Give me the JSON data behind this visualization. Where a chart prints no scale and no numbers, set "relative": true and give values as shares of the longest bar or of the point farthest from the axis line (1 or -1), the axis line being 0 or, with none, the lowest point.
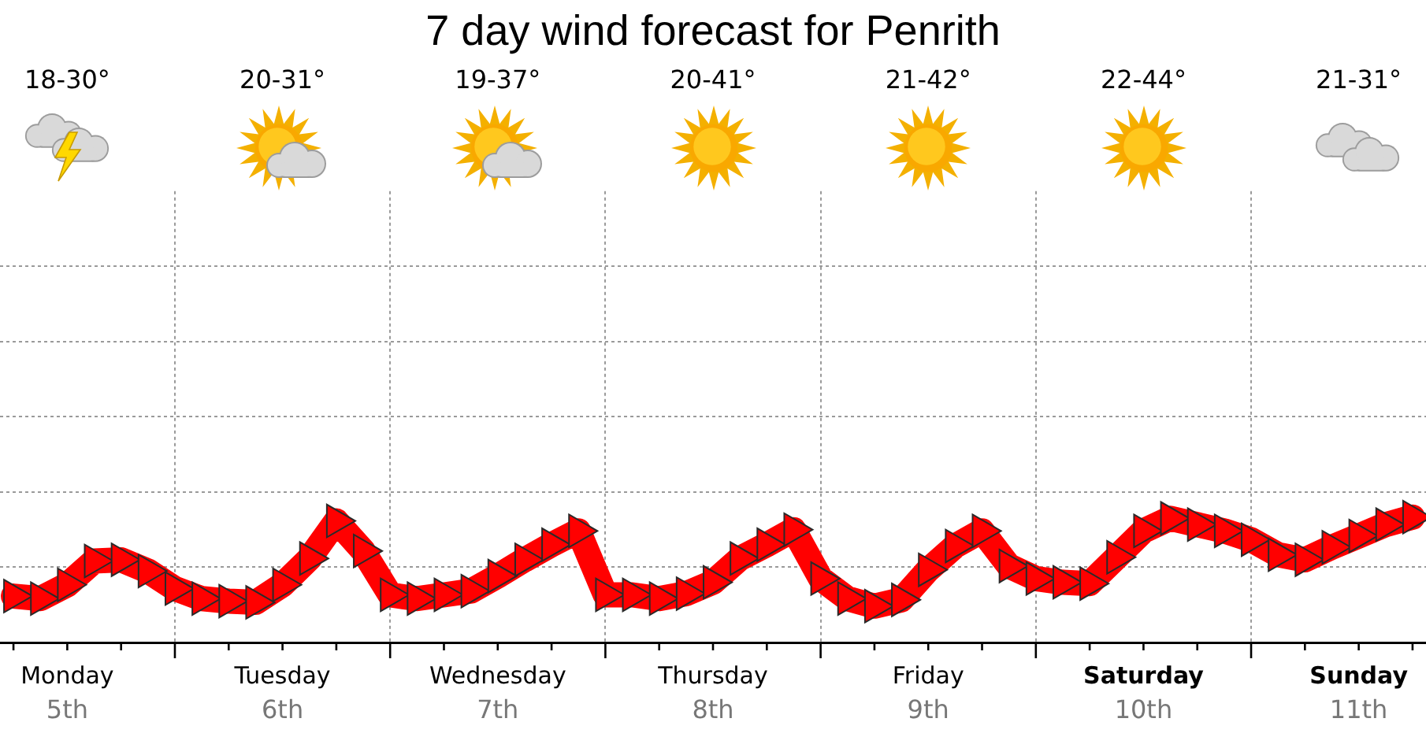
{
  "chart_data": {
    "type": "line",
    "title": "7 day wind forecast for Penrith",
    "categories": [
      null,
      null,
      "Monday\n5th",
      null,
      null,
      null,
      null,
      null,
      null,
      null,
      "Tuesday\n6th",
      null,
      null,
      null,
      null,
      null,
      null,
      null,
      "Wednesday\n7th",
      null,
      null,
      null,
      null,
      null,
      null,
      null,
      "Thursday\n8th",
      null,
      null,
      null,
      null,
      null,
      null,
      null,
      "Friday\n9th",
      null,
      null,
      null,
      null,
      null,
      null,
      null,
      "Saturday\n10th",
      null,
      null,
      null,
      null,
      null,
      null,
      null,
      "Sunday\n11th",
      null,
      null
    ],
    "values": [
      0.37,
      0.35,
      0.46,
      0.65,
      0.66,
      0.57,
      0.43,
      0.35,
      0.33,
      0.32,
      0.46,
      0.67,
      0.97,
      0.73,
      0.38,
      0.35,
      0.38,
      0.41,
      0.53,
      0.66,
      0.78,
      0.89,
      0.38,
      0.38,
      0.35,
      0.39,
      0.48,
      0.67,
      0.78,
      0.9,
      0.51,
      0.35,
      0.29,
      0.34,
      0.58,
      0.77,
      0.89,
      0.61,
      0.51,
      0.48,
      0.47,
      0.68,
      0.89,
      0.99,
      0.94,
      0.89,
      0.82,
      0.7,
      0.66,
      0.76,
      0.85,
      0.94,
      1
    ],
    "color": "#ff0000",
    "relative": true,
    "grid": true,
    "marker": "triangle",
    "annotations": [
      "18-30°",
      "20-31°",
      "19-37°",
      "20-41°",
      "21-42°",
      "22-44°",
      "21-31°"
    ]
  }
}
